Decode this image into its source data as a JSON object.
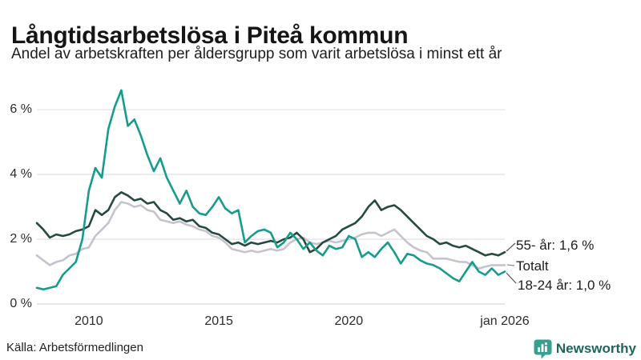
{
  "header": {
    "title": "Långtidsarbetslösa i Piteå kommun",
    "subtitle": "Andel av arbetskraften per åldersgrupp som varit arbetslösa i minst ett år"
  },
  "footer": {
    "source": "Källa: Arbetsförmedlingen",
    "brand": "Newsworthy"
  },
  "colors": {
    "teal_series": "#169c8c",
    "dark_green_series": "#254a40",
    "gray_series": "#c6c2ce",
    "gridline": "#e4e2e8",
    "baseline": "#d6d4da",
    "brand_icon": "#35a08e",
    "brand_text": "#20655a"
  },
  "chart_data": {
    "type": "line",
    "title": "Långtidsarbetslösa i Piteå kommun",
    "subtitle": "Andel av arbetskraften per åldersgrupp som varit arbetslösa i minst ett år",
    "x_start": 2008,
    "x_step": 0.25,
    "x_end": 2026,
    "ylim": [
      0,
      6.67
    ],
    "yticks": [
      0,
      2,
      4,
      6
    ],
    "ytick_labels": [
      "0 %",
      "2 %",
      "4 %",
      "6 %"
    ],
    "xticks": [
      2010,
      2015,
      2020,
      2026
    ],
    "xtick_labels": [
      "2010",
      "2015",
      "2020",
      "jan 2026"
    ],
    "grid": true,
    "legend_position": "end-of-line-labels-right",
    "series": [
      {
        "name": "Totalt",
        "color": "#c6c2ce",
        "end_label": "Totalt",
        "values": [
          1.5,
          1.35,
          1.2,
          1.3,
          1.35,
          1.5,
          1.55,
          1.7,
          1.75,
          2.1,
          2.3,
          2.5,
          2.9,
          3.15,
          3.1,
          3.0,
          3.05,
          2.9,
          2.85,
          2.6,
          2.55,
          2.5,
          2.55,
          2.45,
          2.4,
          2.3,
          2.25,
          2.1,
          2.05,
          1.9,
          1.7,
          1.65,
          1.6,
          1.65,
          1.6,
          1.65,
          1.7,
          1.65,
          1.7,
          1.9,
          2.0,
          2.05,
          1.9,
          1.85,
          1.9,
          1.95,
          1.9,
          1.95,
          2.0,
          2.05,
          2.15,
          2.2,
          2.2,
          2.1,
          2.2,
          2.3,
          2.1,
          1.9,
          1.75,
          1.65,
          1.6,
          1.4,
          1.4,
          1.4,
          1.35,
          1.3,
          1.3,
          1.2,
          1.1,
          1.15,
          1.2,
          1.2,
          1.2
        ]
      },
      {
        "name": "55- år",
        "color": "#254a40",
        "end_label": "55- år: 1,6 %",
        "values": [
          2.5,
          2.3,
          2.05,
          2.15,
          2.1,
          2.15,
          2.25,
          2.3,
          2.4,
          2.9,
          2.75,
          2.9,
          3.3,
          3.45,
          3.35,
          3.2,
          3.25,
          3.1,
          3.15,
          2.9,
          2.8,
          2.6,
          2.65,
          2.55,
          2.6,
          2.4,
          2.35,
          2.2,
          2.15,
          2.0,
          1.85,
          1.9,
          1.8,
          1.9,
          1.85,
          1.9,
          1.95,
          1.9,
          2.0,
          2.05,
          2.2,
          2.0,
          1.6,
          1.7,
          1.9,
          2.0,
          2.1,
          2.3,
          2.4,
          2.5,
          2.7,
          3.0,
          3.2,
          2.9,
          3.0,
          3.05,
          2.9,
          2.7,
          2.5,
          2.3,
          2.1,
          2.0,
          1.85,
          1.9,
          1.8,
          1.75,
          1.8,
          1.7,
          1.6,
          1.5,
          1.55,
          1.5,
          1.6
        ]
      },
      {
        "name": "18-24 år",
        "color": "#169c8c",
        "end_label": "18-24 år: 1,0 %",
        "values": [
          0.5,
          0.45,
          0.5,
          0.55,
          0.9,
          1.1,
          1.3,
          2.0,
          3.5,
          4.2,
          3.9,
          5.4,
          6.1,
          6.6,
          5.5,
          5.7,
          5.2,
          4.6,
          4.1,
          4.5,
          3.9,
          3.5,
          3.1,
          3.5,
          3.0,
          2.8,
          2.75,
          3.0,
          3.3,
          2.95,
          2.8,
          2.9,
          1.9,
          2.1,
          2.25,
          2.3,
          2.2,
          1.75,
          1.9,
          2.2,
          2.0,
          1.7,
          1.9,
          1.65,
          1.5,
          1.8,
          1.7,
          1.75,
          2.1,
          2.0,
          1.45,
          1.6,
          1.45,
          1.7,
          1.9,
          1.6,
          1.25,
          1.55,
          1.5,
          1.35,
          1.25,
          1.2,
          1.1,
          0.95,
          0.8,
          0.7,
          1.0,
          1.3,
          1.0,
          0.9,
          1.1,
          0.9,
          1.0
        ]
      }
    ]
  }
}
